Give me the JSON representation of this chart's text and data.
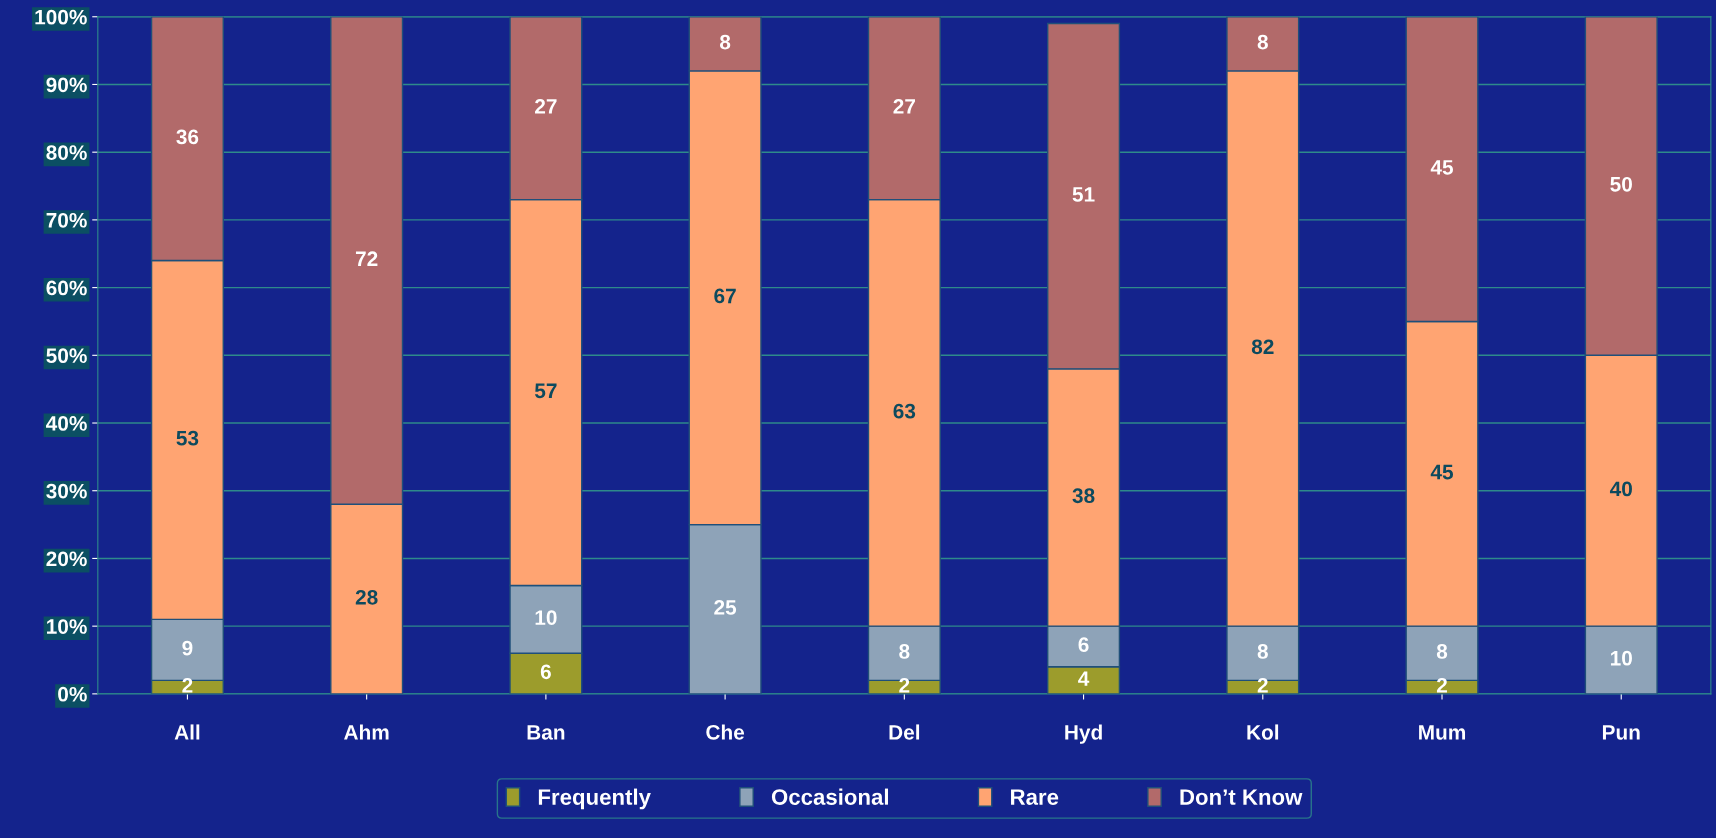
{
  "chart_data": {
    "type": "bar",
    "stacked": true,
    "categories": [
      "All",
      "Ahm",
      "Ban",
      "Che",
      "Del",
      "Hyd",
      "Kol",
      "Mum",
      "Pun"
    ],
    "series": [
      {
        "name": "Frequently",
        "color": "#9c9c2c",
        "values": [
          2,
          null,
          6,
          null,
          2,
          4,
          2,
          2,
          null
        ]
      },
      {
        "name": "Occasional",
        "color": "#8ea3b8",
        "values": [
          9,
          null,
          10,
          25,
          8,
          6,
          8,
          8,
          10
        ]
      },
      {
        "name": "Rare",
        "color": "#ffa472",
        "values": [
          53,
          28,
          57,
          67,
          63,
          38,
          82,
          45,
          40
        ]
      },
      {
        "name": "Don’t Know",
        "color": "#b26a6a",
        "values": [
          36,
          72,
          27,
          8,
          27,
          51,
          8,
          45,
          50
        ]
      }
    ],
    "ylim": [
      0,
      100
    ],
    "yticks": [
      {
        "value": 0,
        "label": "0%"
      },
      {
        "value": 10,
        "label": "10%"
      },
      {
        "value": 20,
        "label": "20%"
      },
      {
        "value": 30,
        "label": "30%"
      },
      {
        "value": 40,
        "label": "40%"
      },
      {
        "value": 50,
        "label": "50%"
      },
      {
        "value": 60,
        "label": "60%"
      },
      {
        "value": 70,
        "label": "70%"
      },
      {
        "value": 80,
        "label": "80%"
      },
      {
        "value": 90,
        "label": "90%"
      },
      {
        "value": 100,
        "label": "100%"
      }
    ],
    "grid": "y",
    "legend": "bottom",
    "data_labels": true
  }
}
